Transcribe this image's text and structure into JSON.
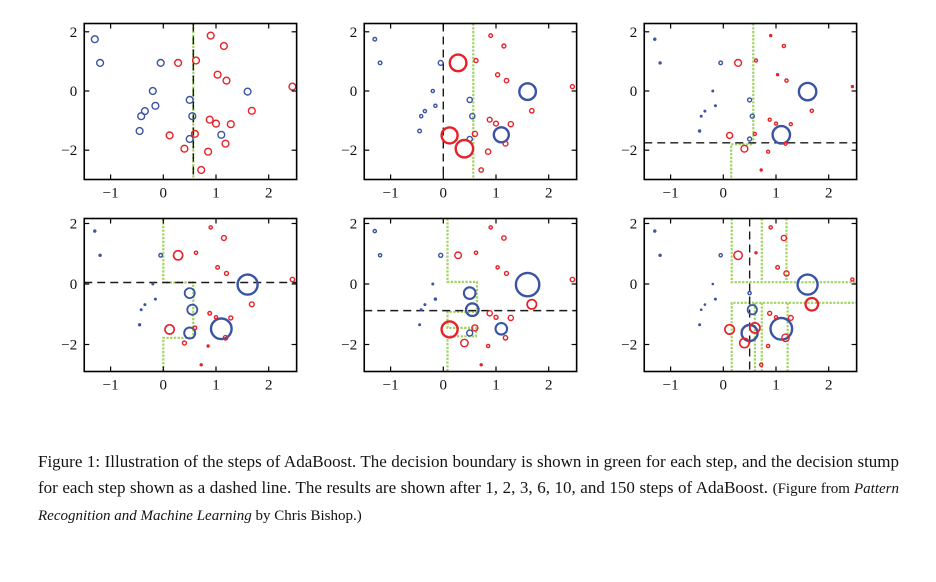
{
  "caption": {
    "label": "Figure 1:",
    "body": "Illustration of the steps of AdaBoost. The decision boundary is shown in green for each step, and the decision stump for each step shown as a dashed line. The results are shown after 1, 2, 3, 6, 10, and 150 steps of AdaBoost.",
    "note_prefix": "(Figure from ",
    "note_title": "Pattern Recognition and Machine Learning",
    "note_suffix": " by Chris Bishop.)"
  },
  "colors": {
    "blue": "#3a53a4",
    "red": "#e62228",
    "green": "#9bd15a",
    "stump_dash": "#1a1a1a",
    "axis": "#000000",
    "background": "#ffffff"
  },
  "chart_data": {
    "type": "scatter",
    "title": "AdaBoost steps: weighted data points, green decision boundary, dashed decision stump",
    "grid_layout": "2 rows x 3 columns, panels correspond to boosting steps 1, 2, 3, 6, 10, 150",
    "xlim": [
      -1.5,
      2.53
    ],
    "ylim": [
      -2.95,
      2.28
    ],
    "xticks": [
      -1,
      0,
      1,
      2
    ],
    "yticks": [
      2,
      0,
      -2
    ],
    "legend": "none",
    "classes": [
      {
        "name": "class-blue",
        "color": "#3a53a4"
      },
      {
        "name": "class-red",
        "color": "#e62228"
      }
    ],
    "points": [
      {
        "x": -1.3,
        "y": 1.75,
        "c": "b"
      },
      {
        "x": -1.2,
        "y": 0.95,
        "c": "b"
      },
      {
        "x": -0.05,
        "y": 0.95,
        "c": "b"
      },
      {
        "x": -0.2,
        "y": 0.0,
        "c": "b"
      },
      {
        "x": -0.15,
        "y": -0.5,
        "c": "b"
      },
      {
        "x": -0.35,
        "y": -0.68,
        "c": "b"
      },
      {
        "x": -0.42,
        "y": -0.85,
        "c": "b"
      },
      {
        "x": -0.45,
        "y": -1.35,
        "c": "b"
      },
      {
        "x": 0.5,
        "y": -0.3,
        "c": "b"
      },
      {
        "x": 0.55,
        "y": -0.85,
        "c": "b"
      },
      {
        "x": 0.5,
        "y": -1.62,
        "c": "b"
      },
      {
        "x": 1.1,
        "y": -1.48,
        "c": "b"
      },
      {
        "x": 1.6,
        "y": -0.02,
        "c": "b"
      },
      {
        "x": 0.28,
        "y": 0.95,
        "c": "r"
      },
      {
        "x": 0.62,
        "y": 1.03,
        "c": "r"
      },
      {
        "x": 0.9,
        "y": 1.87,
        "c": "r"
      },
      {
        "x": 1.15,
        "y": 1.52,
        "c": "r"
      },
      {
        "x": 1.03,
        "y": 0.55,
        "c": "r"
      },
      {
        "x": 1.2,
        "y": 0.35,
        "c": "r"
      },
      {
        "x": 2.45,
        "y": 0.15,
        "c": "r"
      },
      {
        "x": 1.68,
        "y": -0.67,
        "c": "r"
      },
      {
        "x": 0.88,
        "y": -0.97,
        "c": "r"
      },
      {
        "x": 1.0,
        "y": -1.1,
        "c": "r"
      },
      {
        "x": 1.28,
        "y": -1.12,
        "c": "r"
      },
      {
        "x": 0.12,
        "y": -1.5,
        "c": "r"
      },
      {
        "x": 0.6,
        "y": -1.45,
        "c": "r"
      },
      {
        "x": 0.4,
        "y": -1.95,
        "c": "r"
      },
      {
        "x": 0.85,
        "y": -2.05,
        "c": "r"
      },
      {
        "x": 1.18,
        "y": -1.78,
        "c": "r"
      },
      {
        "x": 0.72,
        "y": -2.67,
        "c": "r"
      }
    ],
    "panels": [
      {
        "step": 1,
        "stump": {
          "orient": "v",
          "pos": 0.57
        },
        "boundary": [
          [
            [
              0.57,
              2.3
            ],
            [
              0.57,
              -3.0
            ]
          ]
        ],
        "sizes": [
          3.4,
          3.4,
          3.4,
          3.4,
          3.4,
          3.4,
          3.4,
          3.4,
          3.4,
          3.4,
          3.4,
          3.4,
          3.4,
          3.4,
          3.4,
          3.4,
          3.4,
          3.4,
          3.4,
          3.4,
          3.4,
          3.4,
          3.4,
          3.4,
          3.4,
          3.4,
          3.4,
          3.4,
          3.4,
          3.4
        ]
      },
      {
        "step": 2,
        "stump": {
          "orient": "v",
          "pos": 0.0
        },
        "boundary": [
          [
            [
              0.57,
              2.3
            ],
            [
              0.57,
              -3.0
            ]
          ]
        ],
        "sizes": [
          1.8,
          1.8,
          2.4,
          1.6,
          1.6,
          1.6,
          1.6,
          1.8,
          2.6,
          2.6,
          2.6,
          7.5,
          8.3,
          8.3,
          2.0,
          1.8,
          2.0,
          2.0,
          2.2,
          2.0,
          2.2,
          2.4,
          2.4,
          2.6,
          8.0,
          2.6,
          8.7,
          2.6,
          2.4,
          2.2
        ]
      },
      {
        "step": 3,
        "stump": {
          "orient": "h",
          "pos": -1.75
        },
        "boundary": [
          [
            [
              0.57,
              2.3
            ],
            [
              0.57,
              -1.8
            ],
            [
              0.15,
              -1.8
            ],
            [
              0.15,
              -3.0
            ]
          ]
        ],
        "sizes": [
          1.4,
          1.4,
          1.8,
          1.2,
          1.2,
          1.2,
          1.2,
          1.4,
          2.0,
          2.0,
          2.0,
          8.7,
          8.7,
          3.4,
          1.5,
          1.4,
          1.6,
          1.4,
          1.6,
          1.4,
          1.6,
          1.5,
          1.5,
          1.5,
          3.0,
          1.5,
          3.4,
          1.5,
          1.5,
          1.4
        ]
      },
      {
        "step": 6,
        "stump": {
          "orient": "h",
          "pos": 0.05
        },
        "boundary": [
          [
            [
              0.0,
              2.3
            ],
            [
              0.0,
              0.05
            ],
            [
              0.57,
              0.05
            ],
            [
              0.57,
              -1.78
            ],
            [
              0.0,
              -1.78
            ],
            [
              0.0,
              -3.0
            ]
          ]
        ],
        "sizes": [
          1.4,
          1.4,
          1.8,
          1.2,
          1.2,
          1.2,
          1.2,
          1.4,
          5.0,
          5.0,
          5.5,
          10.3,
          10.0,
          4.6,
          1.6,
          1.6,
          2.4,
          1.8,
          2.0,
          2.2,
          2.4,
          1.8,
          1.6,
          2.0,
          4.6,
          1.8,
          2.0,
          1.4,
          2.2,
          1.4
        ]
      },
      {
        "step": 10,
        "stump": {
          "orient": "h",
          "pos": -0.88
        },
        "boundary": [
          [
            [
              0.08,
              2.3
            ],
            [
              0.08,
              0.07
            ],
            [
              0.64,
              0.07
            ],
            [
              0.64,
              -0.92
            ],
            [
              0.08,
              -0.92
            ],
            [
              0.08,
              -1.45
            ],
            [
              0.62,
              -1.45
            ],
            [
              0.62,
              -1.73
            ],
            [
              0.08,
              -1.73
            ],
            [
              0.08,
              -3.0
            ]
          ]
        ],
        "sizes": [
          1.6,
          1.6,
          2.0,
          1.2,
          1.4,
          1.2,
          1.2,
          1.2,
          5.8,
          6.3,
          3.0,
          5.8,
          11.7,
          3.3,
          1.6,
          1.6,
          2.2,
          1.6,
          2.0,
          2.2,
          4.7,
          2.6,
          2.0,
          2.6,
          8.0,
          3.0,
          3.7,
          1.6,
          2.2,
          1.4
        ]
      },
      {
        "step": 150,
        "stump": {
          "orient": "v",
          "pos": 0.5
        },
        "boundary": [
          [
            [
              0.16,
              2.3
            ],
            [
              0.16,
              0.06
            ],
            [
              2.53,
              0.06
            ]
          ],
          [
            [
              0.73,
              2.3
            ],
            [
              0.73,
              0.06
            ]
          ],
          [
            [
              1.2,
              2.3
            ],
            [
              1.2,
              0.06
            ]
          ],
          [
            [
              0.16,
              -3.0
            ],
            [
              0.16,
              -0.62
            ],
            [
              2.53,
              -0.62
            ]
          ],
          [
            [
              0.6,
              -0.62
            ],
            [
              0.6,
              -3.0
            ]
          ],
          [
            [
              0.73,
              -0.62
            ],
            [
              0.73,
              -3.0
            ]
          ],
          [
            [
              1.22,
              -0.62
            ],
            [
              1.22,
              -3.0
            ]
          ]
        ],
        "sizes": [
          1.4,
          1.4,
          1.6,
          1.0,
          1.2,
          1.0,
          1.0,
          1.2,
          1.6,
          4.7,
          8.0,
          10.8,
          10.0,
          4.2,
          1.4,
          1.6,
          2.6,
          1.8,
          2.6,
          1.6,
          6.3,
          2.0,
          1.6,
          2.4,
          4.7,
          5.0,
          4.7,
          1.6,
          3.7,
          1.6
        ]
      }
    ]
  }
}
